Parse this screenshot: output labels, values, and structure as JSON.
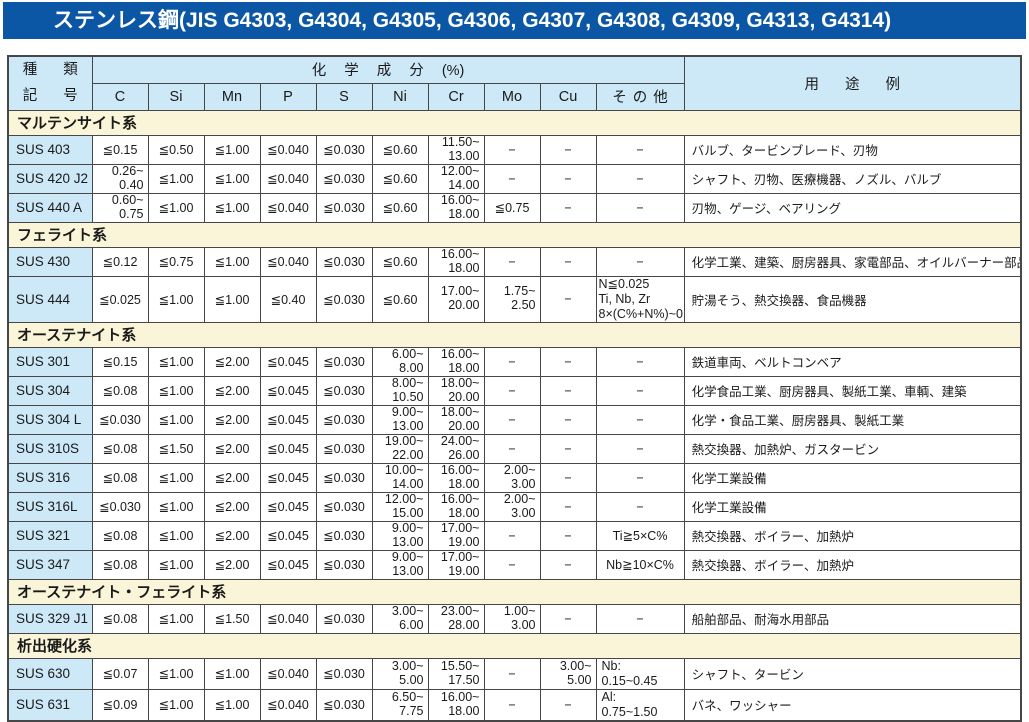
{
  "title": "ステンレス鋼(JIS G4303, G4304, G4305, G4306, G4307, G4308, G4309, G4313, G4314)",
  "colors": {
    "title_bar": "#0b57a6",
    "header_blue": "#cde9f8",
    "section_cream": "#faf5d8",
    "border": "#474747"
  },
  "table": {
    "header": {
      "kind_label": "種 類",
      "symbol_label": "記 号",
      "chem_group": "化 学 成 分 (%)",
      "chem_cols": [
        "C",
        "Si",
        "Mn",
        "P",
        "S",
        "Ni",
        "Cr",
        "Mo",
        "Cu",
        "そ の 他"
      ],
      "usage": "用 途 例"
    },
    "sections": [
      {
        "name": "マルテンサイト系",
        "rows": [
          {
            "grade": "SUS 403",
            "chem": [
              [
                "≦0.15"
              ],
              [
                "≦0.50"
              ],
              [
                "≦1.00"
              ],
              [
                "≦0.040"
              ],
              [
                "≦0.030"
              ],
              [
                "≦0.60"
              ],
              [
                "11.50~",
                "13.00"
              ],
              [
                "−"
              ],
              [
                "−"
              ],
              [
                "−"
              ]
            ],
            "usage": "バルブ、タービンブレード、刃物"
          },
          {
            "grade": "SUS 420 J2",
            "chem": [
              [
                "0.26~",
                "0.40"
              ],
              [
                "≦1.00"
              ],
              [
                "≦1.00"
              ],
              [
                "≦0.040"
              ],
              [
                "≦0.030"
              ],
              [
                "≦0.60"
              ],
              [
                "12.00~",
                "14.00"
              ],
              [
                "−"
              ],
              [
                "−"
              ],
              [
                "−"
              ]
            ],
            "usage": "シャフト、刃物、医療機器、ノズル、バルブ"
          },
          {
            "grade": "SUS 440 A",
            "chem": [
              [
                "0.60~",
                "0.75"
              ],
              [
                "≦1.00"
              ],
              [
                "≦1.00"
              ],
              [
                "≦0.040"
              ],
              [
                "≦0.030"
              ],
              [
                "≦0.60"
              ],
              [
                "16.00~",
                "18.00"
              ],
              [
                "≦0.75"
              ],
              [
                "−"
              ],
              [
                "−"
              ]
            ],
            "usage": "刃物、ゲージ、ベアリング"
          }
        ]
      },
      {
        "name": "フェライト系",
        "rows": [
          {
            "grade": "SUS 430",
            "chem": [
              [
                "≦0.12"
              ],
              [
                "≦0.75"
              ],
              [
                "≦1.00"
              ],
              [
                "≦0.040"
              ],
              [
                "≦0.030"
              ],
              [
                "≦0.60"
              ],
              [
                "16.00~",
                "18.00"
              ],
              [
                "−"
              ],
              [
                "−"
              ],
              [
                "−"
              ]
            ],
            "usage": "化学工業、建築、厨房器具、家電部品、オイルバーナー部品"
          },
          {
            "grade": "SUS 444",
            "chem": [
              [
                "≦0.025"
              ],
              [
                "≦1.00"
              ],
              [
                "≦1.00"
              ],
              [
                "≦0.40"
              ],
              [
                "≦0.030"
              ],
              [
                "≦0.60"
              ],
              [
                "17.00~",
                "20.00"
              ],
              [
                "1.75~",
                "2.50"
              ],
              [
                "−"
              ],
              [
                "N≦0.025",
                "Ti, Nb, Zr",
                "8×(C%+N%)~0.80"
              ]
            ],
            "usage": "貯湯そう、熱交換器、食品機器"
          }
        ]
      },
      {
        "name": "オーステナイト系",
        "rows": [
          {
            "grade": "SUS 301",
            "chem": [
              [
                "≦0.15"
              ],
              [
                "≦1.00"
              ],
              [
                "≦2.00"
              ],
              [
                "≦0.045"
              ],
              [
                "≦0.030"
              ],
              [
                "6.00~",
                "8.00"
              ],
              [
                "16.00~",
                "18.00"
              ],
              [
                "−"
              ],
              [
                "−"
              ],
              [
                "−"
              ]
            ],
            "usage": "鉄道車両、ベルトコンベア"
          },
          {
            "grade": "SUS 304",
            "chem": [
              [
                "≦0.08"
              ],
              [
                "≦1.00"
              ],
              [
                "≦2.00"
              ],
              [
                "≦0.045"
              ],
              [
                "≦0.030"
              ],
              [
                "8.00~",
                "10.50"
              ],
              [
                "18.00~",
                "20.00"
              ],
              [
                "−"
              ],
              [
                "−"
              ],
              [
                "−"
              ]
            ],
            "usage": "化学食品工業、厨房器具、製紙工業、車輌、建築"
          },
          {
            "grade": "SUS 304 L",
            "chem": [
              [
                "≦0.030"
              ],
              [
                "≦1.00"
              ],
              [
                "≦2.00"
              ],
              [
                "≦0.045"
              ],
              [
                "≦0.030"
              ],
              [
                "9.00~",
                "13.00"
              ],
              [
                "18.00~",
                "20.00"
              ],
              [
                "−"
              ],
              [
                "−"
              ],
              [
                "−"
              ]
            ],
            "usage": "化学・食品工業、厨房器具、製紙工業"
          },
          {
            "grade": "SUS 310S",
            "chem": [
              [
                "≦0.08"
              ],
              [
                "≦1.50"
              ],
              [
                "≦2.00"
              ],
              [
                "≦0.045"
              ],
              [
                "≦0.030"
              ],
              [
                "19.00~",
                "22.00"
              ],
              [
                "24.00~",
                "26.00"
              ],
              [
                "−"
              ],
              [
                "−"
              ],
              [
                "−"
              ]
            ],
            "usage": "熱交換器、加熱炉、ガスタービン"
          },
          {
            "grade": "SUS 316",
            "chem": [
              [
                "≦0.08"
              ],
              [
                "≦1.00"
              ],
              [
                "≦2.00"
              ],
              [
                "≦0.045"
              ],
              [
                "≦0.030"
              ],
              [
                "10.00~",
                "14.00"
              ],
              [
                "16.00~",
                "18.00"
              ],
              [
                "2.00~",
                "3.00"
              ],
              [
                "−"
              ],
              [
                "−"
              ]
            ],
            "usage": "化学工業設備"
          },
          {
            "grade": "SUS 316L",
            "chem": [
              [
                "≦0.030"
              ],
              [
                "≦1.00"
              ],
              [
                "≦2.00"
              ],
              [
                "≦0.045"
              ],
              [
                "≦0.030"
              ],
              [
                "12.00~",
                "15.00"
              ],
              [
                "16.00~",
                "18.00"
              ],
              [
                "2.00~",
                "3.00"
              ],
              [
                "−"
              ],
              [
                "−"
              ]
            ],
            "usage": "化学工業設備"
          },
          {
            "grade": "SUS 321",
            "chem": [
              [
                "≦0.08"
              ],
              [
                "≦1.00"
              ],
              [
                "≦2.00"
              ],
              [
                "≦0.045"
              ],
              [
                "≦0.030"
              ],
              [
                "9.00~",
                "13.00"
              ],
              [
                "17.00~",
                "19.00"
              ],
              [
                "−"
              ],
              [
                "−"
              ],
              [
                "Ti≧5×C%"
              ]
            ],
            "usage": "熱交換器、ボイラー、加熱炉"
          },
          {
            "grade": "SUS 347",
            "chem": [
              [
                "≦0.08"
              ],
              [
                "≦1.00"
              ],
              [
                "≦2.00"
              ],
              [
                "≦0.045"
              ],
              [
                "≦0.030"
              ],
              [
                "9.00~",
                "13.00"
              ],
              [
                "17.00~",
                "19.00"
              ],
              [
                "−"
              ],
              [
                "−"
              ],
              [
                "Nb≧10×C%"
              ]
            ],
            "usage": "熱交換器、ボイラー、加熱炉"
          }
        ]
      },
      {
        "name": "オーステナイト・フェライト系",
        "rows": [
          {
            "grade": "SUS 329 J1",
            "chem": [
              [
                "≦0.08"
              ],
              [
                "≦1.00"
              ],
              [
                "≦1.50"
              ],
              [
                "≦0.040"
              ],
              [
                "≦0.030"
              ],
              [
                "3.00~",
                "6.00"
              ],
              [
                "23.00~",
                "28.00"
              ],
              [
                "1.00~",
                "3.00"
              ],
              [
                "−"
              ],
              [
                "−"
              ]
            ],
            "usage": "船舶部品、耐海水用部品"
          }
        ]
      },
      {
        "name": "析出硬化系",
        "rows": [
          {
            "grade": "SUS 630",
            "chem": [
              [
                "≦0.07"
              ],
              [
                "≦1.00"
              ],
              [
                "≦1.00"
              ],
              [
                "≦0.040"
              ],
              [
                "≦0.030"
              ],
              [
                "3.00~",
                "5.00"
              ],
              [
                "15.50~",
                "17.50"
              ],
              [
                "−"
              ],
              [
                "3.00~",
                "5.00"
              ],
              [
                "Nb:",
                "0.15~0.45"
              ]
            ],
            "usage": "シャフト、タービン"
          },
          {
            "grade": "SUS 631",
            "chem": [
              [
                "≦0.09"
              ],
              [
                "≦1.00"
              ],
              [
                "≦1.00"
              ],
              [
                "≦0.040"
              ],
              [
                "≦0.030"
              ],
              [
                "6.50~",
                "7.75"
              ],
              [
                "16.00~",
                "18.00"
              ],
              [
                "−"
              ],
              [
                "−"
              ],
              [
                "Al:",
                "0.75~1.50"
              ]
            ],
            "usage": "バネ、ワッシャー"
          }
        ]
      }
    ]
  }
}
